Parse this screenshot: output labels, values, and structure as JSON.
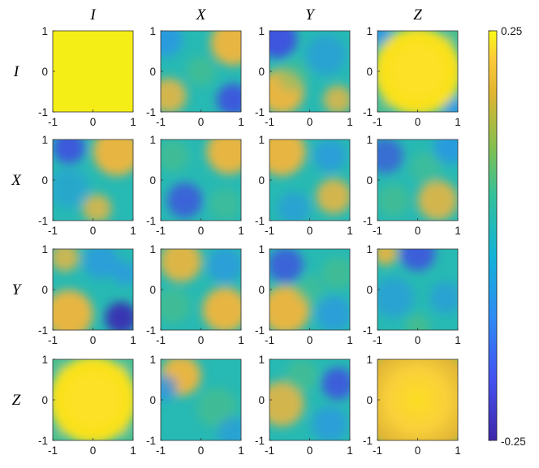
{
  "chart_data": {
    "type": "heatmap",
    "layout": "4x4 grid of heatmap panels",
    "column_labels": [
      "I",
      "X",
      "Y",
      "Z"
    ],
    "row_labels": [
      "I",
      "X",
      "Y",
      "Z"
    ],
    "axis_ticks": [
      "-1",
      "0",
      "1"
    ],
    "xlim": [
      -1,
      1
    ],
    "ylim": [
      -1,
      1
    ],
    "colorbar": {
      "min": -0.25,
      "max": 0.25,
      "min_label": "-0.25",
      "max_label": "0.25",
      "colormap": "parula"
    },
    "panels": [
      {
        "row": "I",
        "col": "I",
        "pattern": "uniform value ≈ 0.25"
      },
      {
        "row": "I",
        "col": "X",
        "pattern": "positive top-right and bottom-left, negative top-left and bottom-right"
      },
      {
        "row": "I",
        "col": "Y",
        "pattern": "negative top-left, positive bottom-left"
      },
      {
        "row": "I",
        "col": "Z",
        "pattern": "positive center (astroid shape), lower at corners"
      },
      {
        "row": "X",
        "col": "I",
        "pattern": "positive top-right, negative top-left"
      },
      {
        "row": "X",
        "col": "X",
        "pattern": "positive top-right, negative bottom-left"
      },
      {
        "row": "X",
        "col": "Y",
        "pattern": "positive top-left and bottom-right"
      },
      {
        "row": "X",
        "col": "Z",
        "pattern": "mixed, positive band bottom-right"
      },
      {
        "row": "Y",
        "col": "I",
        "pattern": "positive bottom-left, negative bottom-right"
      },
      {
        "row": "Y",
        "col": "X",
        "pattern": "positive top-left and bottom-right"
      },
      {
        "row": "Y",
        "col": "Y",
        "pattern": "positive bottom-left, negative top-left"
      },
      {
        "row": "Y",
        "col": "Z",
        "pattern": "negative top, positive top-left corner"
      },
      {
        "row": "Z",
        "col": "I",
        "pattern": "positive center (astroid shape)"
      },
      {
        "row": "Z",
        "col": "X",
        "pattern": "positive top-left, negative left edge"
      },
      {
        "row": "Z",
        "col": "Y",
        "pattern": "positive left, negative right"
      },
      {
        "row": "Z",
        "col": "Z",
        "pattern": "positive center, radially decreasing"
      }
    ]
  }
}
